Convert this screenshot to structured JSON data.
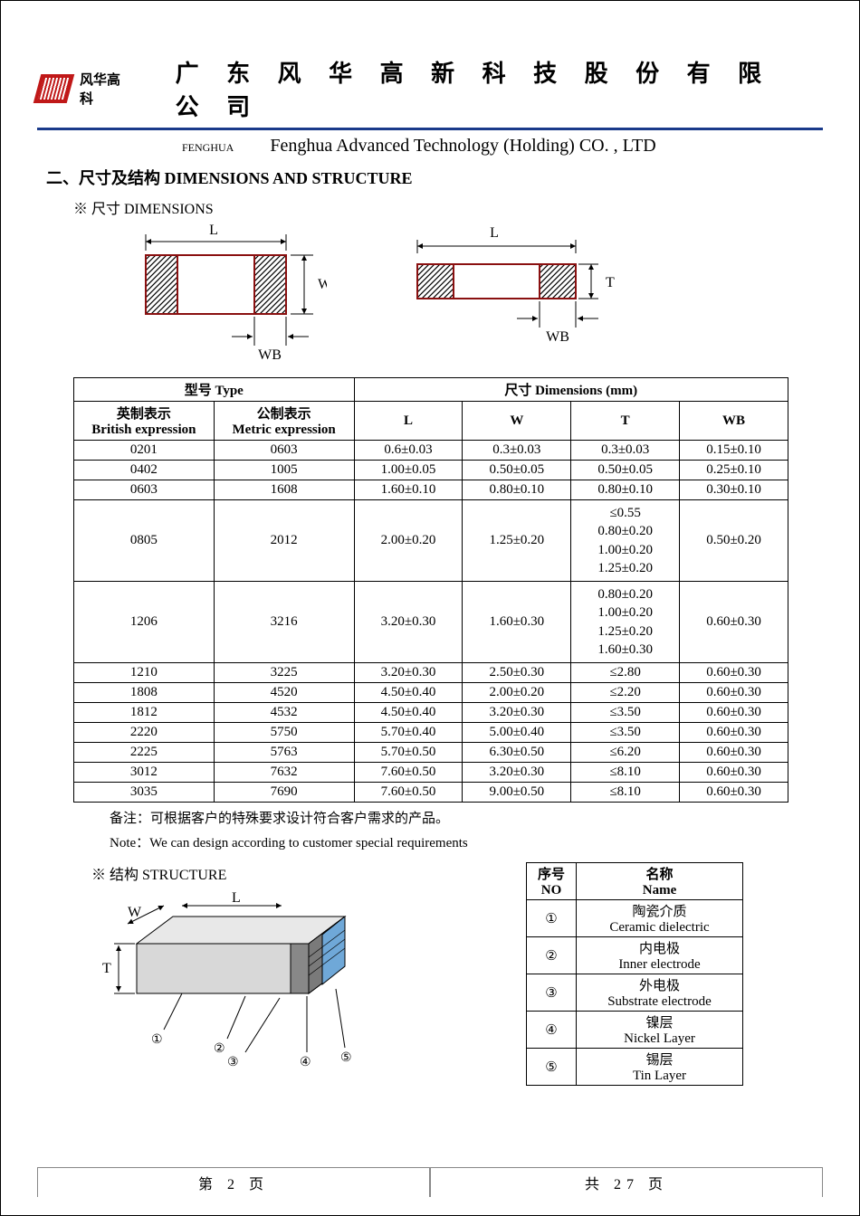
{
  "header": {
    "brand_cn": "风华高科",
    "title_cn": "广 东 风 华 高 新 科 技 股 份 有 限 公 司",
    "brand_en": "FENGHUA",
    "title_en": "Fenghua Advanced Technology (Holding) CO. , LTD"
  },
  "section": {
    "heading": "二、尺寸及结构    DIMENSIONS AND STRUCTURE",
    "dim_subtitle": "※ 尺寸 DIMENSIONS",
    "struct_subtitle": "※ 结构 STRUCTURE"
  },
  "diagram_labels": {
    "L": "L",
    "W": "W",
    "T": "T",
    "WB": "WB"
  },
  "dim_table": {
    "type_label": "型号 Type",
    "dim_label": "尺寸      Dimensions      (mm)",
    "british_cn": "英制表示",
    "british_en": "British expression",
    "metric_cn": "公制表示",
    "metric_en": "Metric expression",
    "cols": [
      "L",
      "W",
      "T",
      "WB"
    ],
    "rows": [
      {
        "brit": "0201",
        "metr": "0603",
        "L": "0.6±0.03",
        "W": "0.3±0.03",
        "T": "0.3±0.03",
        "WB": "0.15±0.10"
      },
      {
        "brit": "0402",
        "metr": "1005",
        "L": "1.00±0.05",
        "W": "0.50±0.05",
        "T": "0.50±0.05",
        "WB": "0.25±0.10"
      },
      {
        "brit": "0603",
        "metr": "1608",
        "L": "1.60±0.10",
        "W": "0.80±0.10",
        "T": "0.80±0.10",
        "WB": "0.30±0.10"
      },
      {
        "brit": "0805",
        "metr": "2012",
        "L": "2.00±0.20",
        "W": "1.25±0.20",
        "T": "≤0.55\n0.80±0.20\n1.00±0.20\n1.25±0.20",
        "WB": "0.50±0.20"
      },
      {
        "brit": "1206",
        "metr": "3216",
        "L": "3.20±0.30",
        "W": "1.60±0.30",
        "T": "0.80±0.20\n1.00±0.20\n1.25±0.20\n1.60±0.30",
        "WB": "0.60±0.30"
      },
      {
        "brit": "1210",
        "metr": "3225",
        "L": "3.20±0.30",
        "W": "2.50±0.30",
        "T": "≤2.80",
        "WB": "0.60±0.30"
      },
      {
        "brit": "1808",
        "metr": "4520",
        "L": "4.50±0.40",
        "W": "2.00±0.20",
        "T": "≤2.20",
        "WB": "0.60±0.30"
      },
      {
        "brit": "1812",
        "metr": "4532",
        "L": "4.50±0.40",
        "W": "3.20±0.30",
        "T": "≤3.50",
        "WB": "0.60±0.30"
      },
      {
        "brit": "2220",
        "metr": "5750",
        "L": "5.70±0.40",
        "W": "5.00±0.40",
        "T": "≤3.50",
        "WB": "0.60±0.30"
      },
      {
        "brit": "2225",
        "metr": "5763",
        "L": "5.70±0.50",
        "W": "6.30±0.50",
        "T": "≤6.20",
        "WB": "0.60±0.30"
      },
      {
        "brit": "3012",
        "metr": "7632",
        "L": "7.60±0.50",
        "W": "3.20±0.30",
        "T": "≤8.10",
        "WB": "0.60±0.30"
      },
      {
        "brit": "3035",
        "metr": "7690",
        "L": "7.60±0.50",
        "W": "9.00±0.50",
        "T": "≤8.10",
        "WB": "0.60±0.30"
      }
    ]
  },
  "notes": {
    "cn": "备注：可根据客户的特殊要求设计符合客户需求的产品。",
    "en": "Note：We can design according to customer special requirements"
  },
  "struct_table": {
    "no_cn": "序号",
    "no_en": "NO",
    "name_cn": "名称",
    "name_en": "Name",
    "rows": [
      {
        "no": "①",
        "cn": "陶瓷介质",
        "en": "Ceramic   dielectric"
      },
      {
        "no": "②",
        "cn": "内电极",
        "en": "Inner   electrode"
      },
      {
        "no": "③",
        "cn": "外电极",
        "en": "Substrate   electrode"
      },
      {
        "no": "④",
        "cn": "镍层",
        "en": "Nickel Layer"
      },
      {
        "no": "⑤",
        "cn": "锡层",
        "en": "Tin Layer"
      }
    ]
  },
  "footer": {
    "page_left": "第   2   页",
    "page_right": "共  27  页"
  },
  "colors": {
    "rule": "#1a3a8a",
    "logo": "#c01818",
    "hatch": "#8a1010",
    "struct_gray": "#b8b8b8",
    "struct_dark": "#5a5a5a",
    "struct_blue": "#6fa8d8"
  }
}
